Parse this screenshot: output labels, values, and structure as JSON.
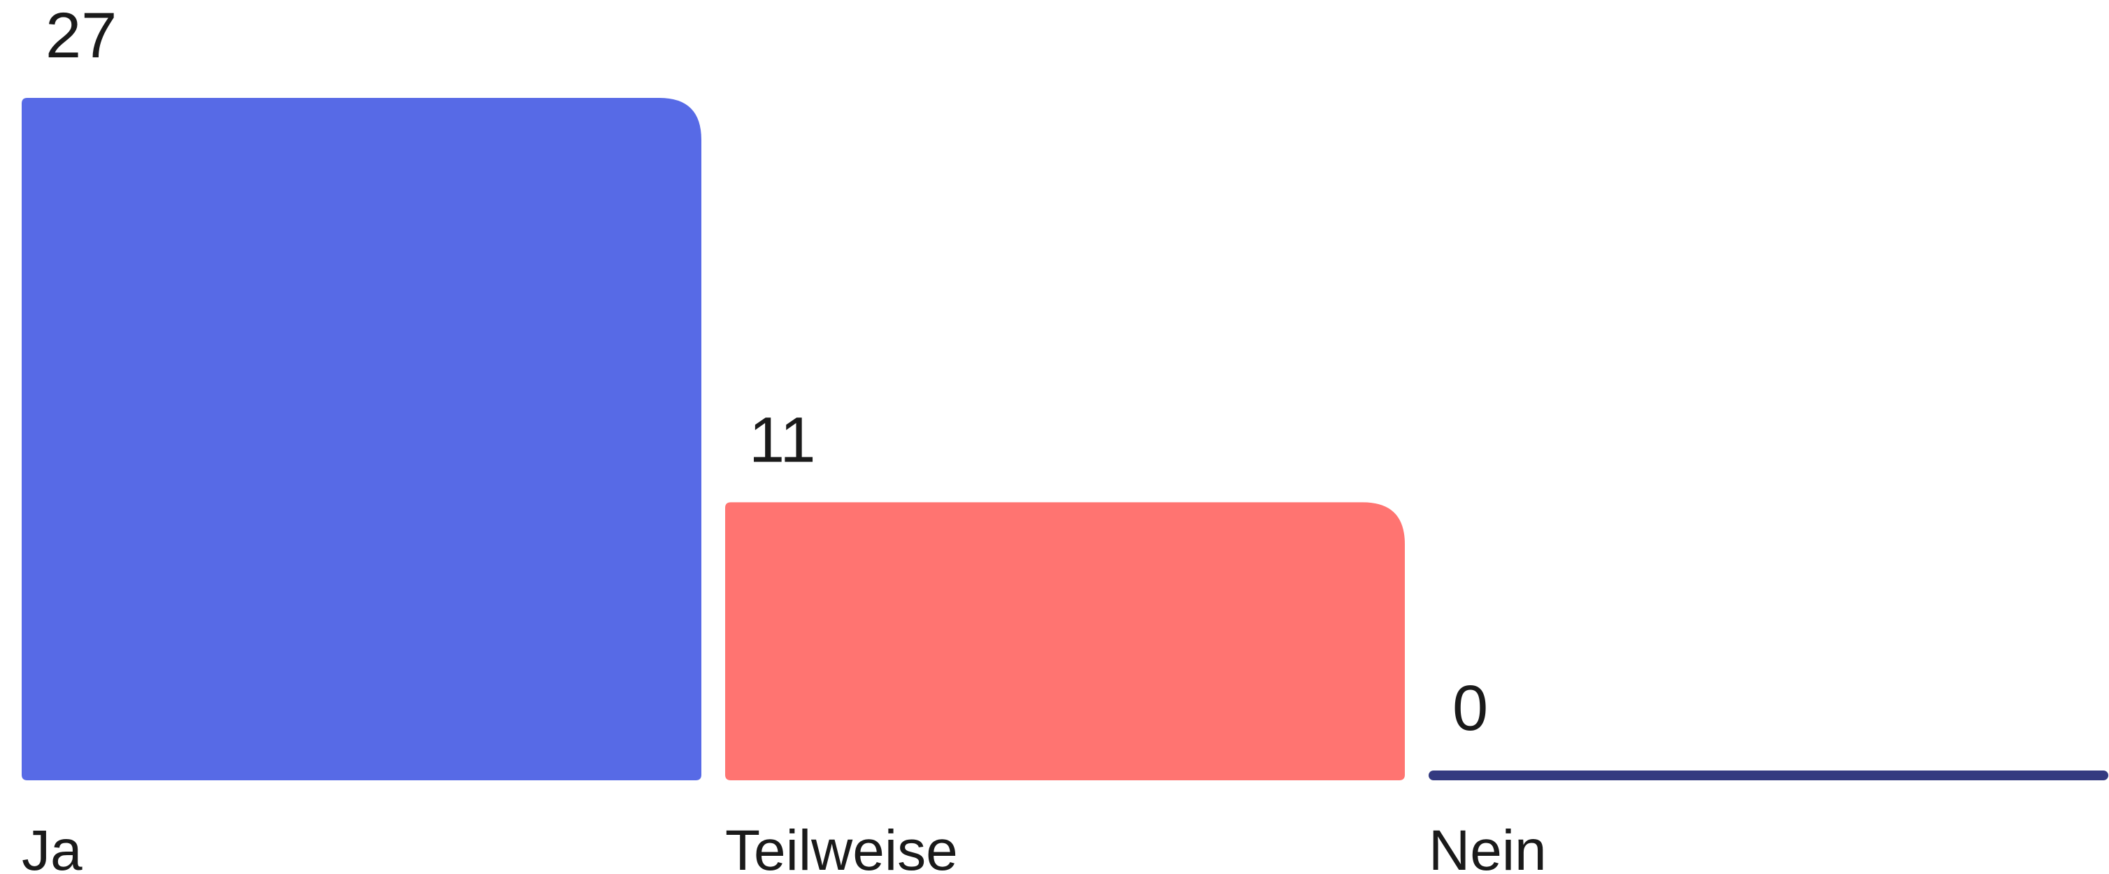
{
  "chart_data": {
    "type": "bar",
    "categories": [
      "Ja",
      "Teilweise",
      "Nein"
    ],
    "values": [
      27,
      11,
      0
    ],
    "data_labels": [
      "27",
      "11",
      "0"
    ],
    "colors": [
      "#576ae6",
      "#ff7471",
      "#343a80"
    ],
    "title": "",
    "xlabel": "",
    "ylabel": "",
    "ylim": [
      0,
      27
    ],
    "grid": false,
    "legend": "none"
  }
}
